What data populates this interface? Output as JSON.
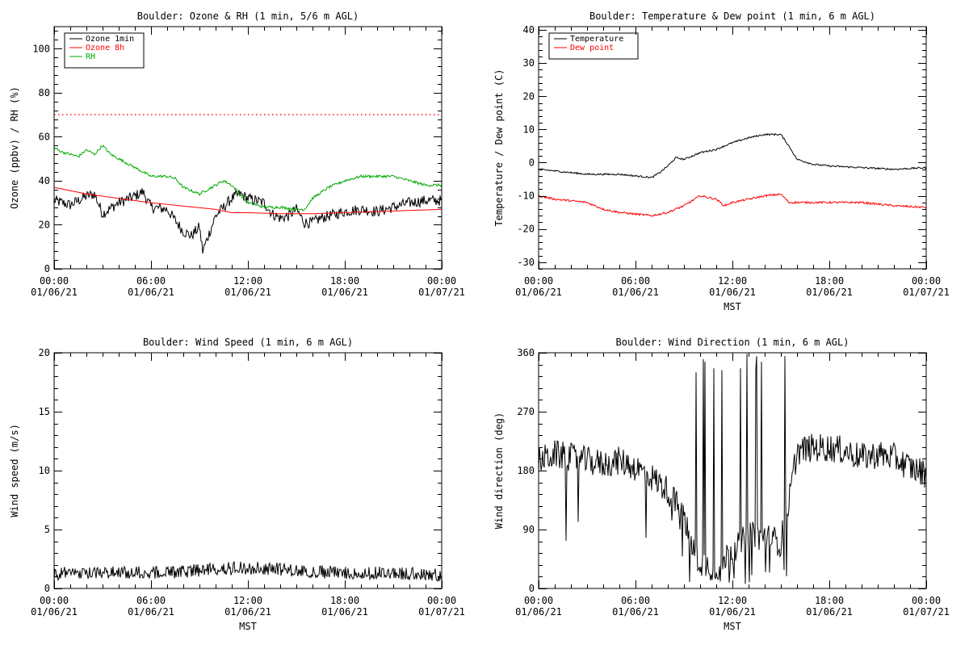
{
  "chart_data": [
    {
      "id": "ozone-rh",
      "type": "line",
      "title": "Boulder: Ozone & RH (1 min, 5/6 m AGL)",
      "ylabel": "Ozone (ppbv) / RH (%)",
      "xlabel": "",
      "ylim": [
        0,
        110
      ],
      "yticks": [
        0,
        20,
        40,
        60,
        80,
        100
      ],
      "x_tick_labels": [
        [
          "00:00",
          "01/06/21"
        ],
        [
          "06:00",
          "01/06/21"
        ],
        [
          "12:00",
          "01/06/21"
        ],
        [
          "18:00",
          "01/06/21"
        ],
        [
          "00:00",
          "01/07/21"
        ]
      ],
      "legend": "top-left",
      "reference_line": {
        "y": 70,
        "color": "#ff0000",
        "style": "dotted"
      },
      "series": [
        {
          "name": "Ozone 1min",
          "color": "#000000",
          "noise": 2.5,
          "points": [
            [
              0,
              31
            ],
            [
              1,
              29
            ],
            [
              2,
              33
            ],
            [
              2.5,
              34
            ],
            [
              3,
              25
            ],
            [
              4,
              30
            ],
            [
              5,
              33
            ],
            [
              5.5,
              35
            ],
            [
              6,
              28
            ],
            [
              7,
              27
            ],
            [
              8,
              17
            ],
            [
              8.5,
              15
            ],
            [
              9,
              19
            ],
            [
              9.2,
              8
            ],
            [
              9.5,
              14
            ],
            [
              10,
              24
            ],
            [
              10.5,
              28
            ],
            [
              11,
              32
            ],
            [
              11.5,
              34
            ],
            [
              12,
              32
            ],
            [
              13,
              30
            ],
            [
              13.5,
              25
            ],
            [
              14,
              23
            ],
            [
              14.5,
              24
            ],
            [
              15,
              27
            ],
            [
              15.5,
              21
            ],
            [
              16,
              21
            ],
            [
              16.5,
              23
            ],
            [
              17,
              24
            ],
            [
              18,
              26
            ],
            [
              19,
              27
            ],
            [
              20,
              26
            ],
            [
              21,
              28
            ],
            [
              22,
              30
            ],
            [
              23,
              31
            ],
            [
              24,
              31
            ]
          ]
        },
        {
          "name": "Ozone 8h",
          "color": "#ff0000",
          "noise": 0,
          "points": [
            [
              0,
              37
            ],
            [
              2,
              34
            ],
            [
              4,
              32
            ],
            [
              6,
              30
            ],
            [
              8,
              28.5
            ],
            [
              10,
              27
            ],
            [
              11,
              25.5
            ],
            [
              12,
              25.5
            ],
            [
              14,
              25
            ],
            [
              16,
              25
            ],
            [
              18,
              25.5
            ],
            [
              20,
              26
            ],
            [
              22,
              26.5
            ],
            [
              24,
              27
            ]
          ]
        },
        {
          "name": "RH",
          "color": "#00aa00",
          "noise": 0.6,
          "points": [
            [
              0,
              55
            ],
            [
              0.5,
              53
            ],
            [
              1.5,
              51
            ],
            [
              2,
              54
            ],
            [
              2.5,
              52
            ],
            [
              3,
              56
            ],
            [
              3.5,
              52
            ],
            [
              4,
              50
            ],
            [
              5,
              46
            ],
            [
              6,
              42
            ],
            [
              7,
              42
            ],
            [
              7.5,
              41
            ],
            [
              8,
              37
            ],
            [
              9,
              34
            ],
            [
              10,
              38
            ],
            [
              10.5,
              40
            ],
            [
              11,
              38
            ],
            [
              11.5,
              34
            ],
            [
              12,
              30
            ],
            [
              13,
              28
            ],
            [
              14,
              28
            ],
            [
              15,
              27
            ],
            [
              15.5,
              27
            ],
            [
              16,
              32
            ],
            [
              17,
              37
            ],
            [
              18,
              40
            ],
            [
              19,
              42
            ],
            [
              20,
              42
            ],
            [
              21,
              42
            ],
            [
              22,
              40
            ],
            [
              23,
              38
            ],
            [
              24,
              38
            ]
          ]
        }
      ]
    },
    {
      "id": "temp-dew",
      "type": "line",
      "title": "Boulder: Temperature & Dew point (1 min, 6 m AGL)",
      "ylabel": "Temperature / Dew point (C)",
      "xlabel": "MST",
      "ylim": [
        -32,
        41
      ],
      "yticks": [
        -30,
        -20,
        -10,
        0,
        10,
        20,
        30,
        40
      ],
      "x_tick_labels": [
        [
          "00:00",
          "01/06/21"
        ],
        [
          "06:00",
          "01/06/21"
        ],
        [
          "12:00",
          "01/06/21"
        ],
        [
          "18:00",
          "01/06/21"
        ],
        [
          "00:00",
          "01/07/21"
        ]
      ],
      "legend": "top-left",
      "series": [
        {
          "name": "Temperature",
          "color": "#000000",
          "noise": 0.25,
          "points": [
            [
              0,
              -2
            ],
            [
              1,
              -2.5
            ],
            [
              2,
              -3
            ],
            [
              3,
              -3.5
            ],
            [
              4,
              -3.5
            ],
            [
              5,
              -3.5
            ],
            [
              6,
              -4
            ],
            [
              7,
              -4.5
            ],
            [
              7.5,
              -3
            ],
            [
              8,
              -1
            ],
            [
              8.5,
              1.5
            ],
            [
              9,
              1
            ],
            [
              9.5,
              2
            ],
            [
              10,
              3
            ],
            [
              11,
              4
            ],
            [
              12,
              6
            ],
            [
              13,
              7.5
            ],
            [
              14,
              8.5
            ],
            [
              15,
              8.5
            ],
            [
              15.5,
              5
            ],
            [
              16,
              1
            ],
            [
              17,
              -0.5
            ],
            [
              18,
              -1
            ],
            [
              20,
              -1.5
            ],
            [
              22,
              -2
            ],
            [
              24,
              -1.5
            ]
          ]
        },
        {
          "name": "Dew point",
          "color": "#ff0000",
          "noise": 0.3,
          "points": [
            [
              0,
              -10
            ],
            [
              1,
              -11
            ],
            [
              2,
              -11.5
            ],
            [
              3,
              -12
            ],
            [
              3.5,
              -13
            ],
            [
              4,
              -14
            ],
            [
              5,
              -15
            ],
            [
              6,
              -15.5
            ],
            [
              7,
              -16
            ],
            [
              8,
              -15
            ],
            [
              9,
              -13
            ],
            [
              10,
              -10
            ],
            [
              11,
              -11
            ],
            [
              11.5,
              -13
            ],
            [
              12,
              -12
            ],
            [
              13,
              -11
            ],
            [
              14,
              -10
            ],
            [
              15,
              -9.5
            ],
            [
              15.5,
              -12
            ],
            [
              16,
              -12
            ],
            [
              18,
              -12
            ],
            [
              20,
              -12
            ],
            [
              22,
              -13
            ],
            [
              24,
              -13.5
            ]
          ]
        }
      ]
    },
    {
      "id": "wind-speed",
      "type": "line",
      "title": "Boulder: Wind Speed (1 min, 6 m AGL)",
      "ylabel": "Wind speed (m/s)",
      "xlabel": "MST",
      "ylim": [
        0,
        20
      ],
      "yticks": [
        0,
        5,
        10,
        15,
        20
      ],
      "x_tick_labels": [
        [
          "00:00",
          "01/06/21"
        ],
        [
          "06:00",
          "01/06/21"
        ],
        [
          "12:00",
          "01/06/21"
        ],
        [
          "18:00",
          "01/06/21"
        ],
        [
          "00:00",
          "01/07/21"
        ]
      ],
      "series": [
        {
          "name": "",
          "color": "#000000",
          "noise": 0.7,
          "points": [
            [
              0,
              1.1
            ],
            [
              2,
              1.2
            ],
            [
              4,
              1.2
            ],
            [
              6,
              1.2
            ],
            [
              8,
              1.3
            ],
            [
              10,
              1.5
            ],
            [
              12,
              1.6
            ],
            [
              14,
              1.5
            ],
            [
              16,
              1.3
            ],
            [
              18,
              1.2
            ],
            [
              20,
              1.2
            ],
            [
              22,
              1.1
            ],
            [
              24,
              1.0
            ]
          ]
        }
      ]
    },
    {
      "id": "wind-dir",
      "type": "line",
      "title": "Boulder: Wind Direction (1 min, 6 m AGL)",
      "ylabel": "Wind direction (deg)",
      "xlabel": "MST",
      "ylim": [
        0,
        360
      ],
      "yticks": [
        0,
        90,
        180,
        270,
        360
      ],
      "x_tick_labels": [
        [
          "00:00",
          "01/06/21"
        ],
        [
          "06:00",
          "01/06/21"
        ],
        [
          "12:00",
          "01/06/21"
        ],
        [
          "18:00",
          "01/06/21"
        ],
        [
          "00:00",
          "01/07/21"
        ]
      ],
      "series": [
        {
          "name": "",
          "color": "#000000",
          "noise": 22,
          "points": [
            [
              0,
              195
            ],
            [
              1,
              205
            ],
            [
              2,
              200
            ],
            [
              3,
              195
            ],
            [
              4,
              190
            ],
            [
              5,
              195
            ],
            [
              6,
              185
            ],
            [
              7,
              170
            ],
            [
              8,
              150
            ],
            [
              9,
              110
            ],
            [
              9.5,
              60
            ],
            [
              10,
              40
            ],
            [
              11,
              30
            ],
            [
              12,
              60
            ],
            [
              13,
              80
            ],
            [
              14,
              80
            ],
            [
              15,
              70
            ],
            [
              15.6,
              150
            ],
            [
              16,
              210
            ],
            [
              17,
              215
            ],
            [
              18,
              215
            ],
            [
              19,
              210
            ],
            [
              20,
              200
            ],
            [
              21,
              205
            ],
            [
              22,
              200
            ],
            [
              23,
              185
            ],
            [
              24,
              175
            ]
          ]
        }
      ]
    }
  ]
}
